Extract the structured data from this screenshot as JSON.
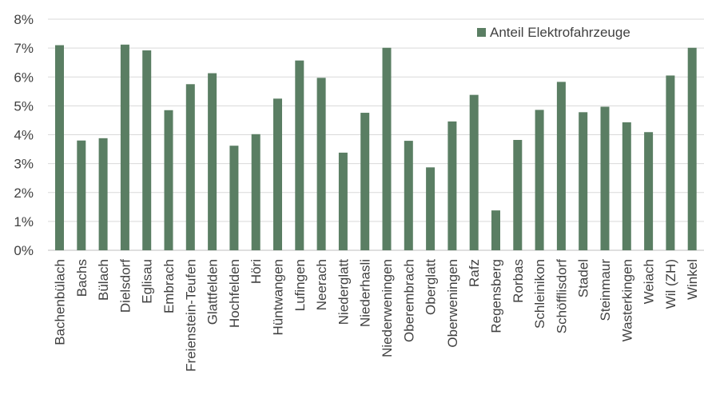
{
  "chart_data": {
    "type": "bar",
    "categories": [
      "Bachenbülach",
      "Bachs",
      "Bülach",
      "Dielsdorf",
      "Eglisau",
      "Embrach",
      "Freienstein-Teufen",
      "Glattfelden",
      "Hochfelden",
      "Höri",
      "Hüntwangen",
      "Lufingen",
      "Neerach",
      "Niederglatt",
      "Niederhasli",
      "Niederweningen",
      "Oberembrach",
      "Oberglatt",
      "Oberweningen",
      "Rafz",
      "Regensberg",
      "Rorbas",
      "Schleinikon",
      "Schöfflisdorf",
      "Stadel",
      "Steinmaur",
      "Wasterkingen",
      "Weiach",
      "Wil (ZH)",
      "Winkel"
    ],
    "series": [
      {
        "name": "Anteil Elektrofahrzeuge",
        "values": [
          7.1,
          3.8,
          3.88,
          7.12,
          6.92,
          4.85,
          5.75,
          6.13,
          3.62,
          4.02,
          5.25,
          6.57,
          5.97,
          3.38,
          4.76,
          7.01,
          3.79,
          2.87,
          4.46,
          5.38,
          1.38,
          3.82,
          4.86,
          5.83,
          4.78,
          4.97,
          4.43,
          4.09,
          6.05,
          7.01
        ]
      }
    ],
    "yticks": [
      "0%",
      "1%",
      "2%",
      "3%",
      "4%",
      "5%",
      "6%",
      "7%",
      "8%"
    ],
    "ylim": [
      0,
      8
    ],
    "grid": true,
    "legend_position": "top-right",
    "bar_color": "#5a7e63",
    "title": "",
    "xlabel": "",
    "ylabel": ""
  }
}
